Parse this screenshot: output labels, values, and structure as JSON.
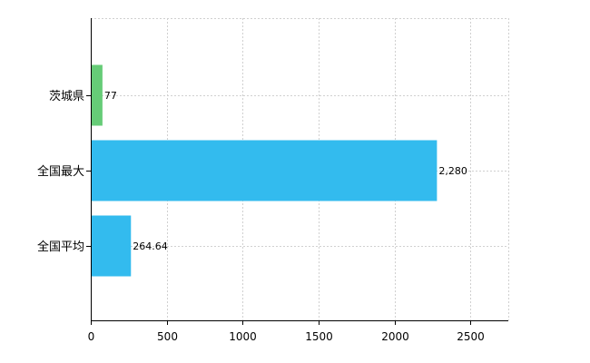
{
  "chart_data": {
    "type": "bar",
    "orientation": "horizontal",
    "categories": [
      "茨城県",
      "全国最大",
      "全国平均"
    ],
    "values": [
      77,
      2280,
      264.64
    ],
    "data_labels": [
      "77",
      "2,280",
      "264.64"
    ],
    "bar_colors": [
      "#66cc77",
      "#33bbee",
      "#33bbee"
    ],
    "xlim": [
      0,
      2750
    ],
    "x_ticks": [
      0,
      500,
      1000,
      1500,
      2000,
      2500
    ],
    "x_tick_labels": [
      "0",
      "500",
      "1000",
      "1500",
      "2000",
      "2500"
    ],
    "grid": true,
    "legend": "none"
  }
}
